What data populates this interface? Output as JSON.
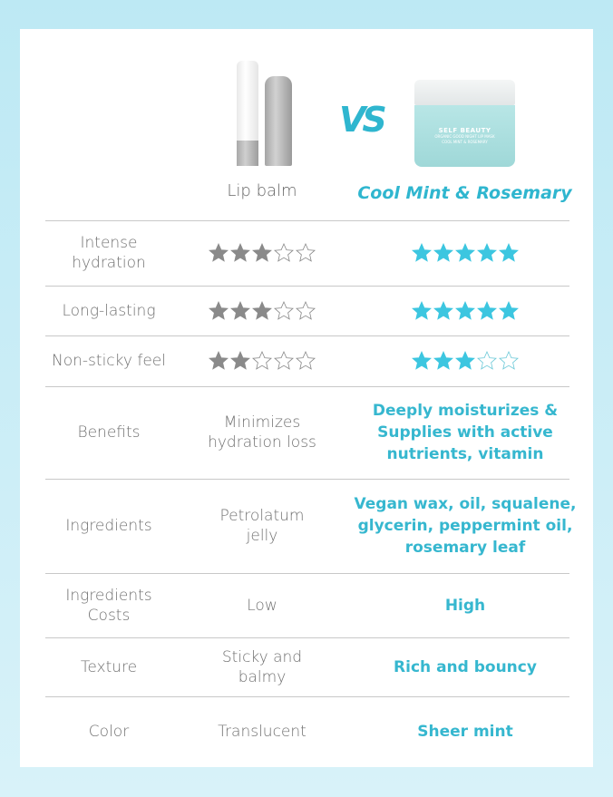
{
  "header": {
    "left_product": "Lip balm",
    "vs": "VS",
    "right_product": "Cool Mint & Rosemary",
    "jar_label": {
      "brand": "SELF BEAUTY",
      "line1": "ORGANIC GOOD NIGHT LIP MASK",
      "line2": "COOL MINT & ROSEMARY"
    }
  },
  "colors": {
    "accent": "#36b7cf",
    "star_grey": "#8a8a8a",
    "star_teal": "#3cc6e0",
    "text": "#707070"
  },
  "rating_rows": [
    {
      "label": "Intense hydration",
      "lip_balm_stars": 3,
      "product_stars": 5,
      "max": 5
    },
    {
      "label": "Long-lasting",
      "lip_balm_stars": 3,
      "product_stars": 5,
      "max": 5
    },
    {
      "label": "Non-sticky feel",
      "lip_balm_stars": 2,
      "product_stars": 3,
      "max": 5
    }
  ],
  "text_rows": [
    {
      "label": "Benefits",
      "lip_balm": "Minimizes hydration loss",
      "product": "Deeply moisturizes & Supplies with active nutrients, vitamin"
    },
    {
      "label": "Ingredients",
      "lip_balm": "Petrolatum jelly",
      "product": "Vegan wax, oil, squalene, glycerin, peppermint oil, rosemary leaf"
    },
    {
      "label": "Ingredients Costs",
      "lip_balm": "Low",
      "product": "High"
    },
    {
      "label": "Texture",
      "lip_balm": "Sticky and balmy",
      "product": "Rich and bouncy"
    },
    {
      "label": "Color",
      "lip_balm": "Translucent",
      "product": "Sheer mint"
    }
  ]
}
